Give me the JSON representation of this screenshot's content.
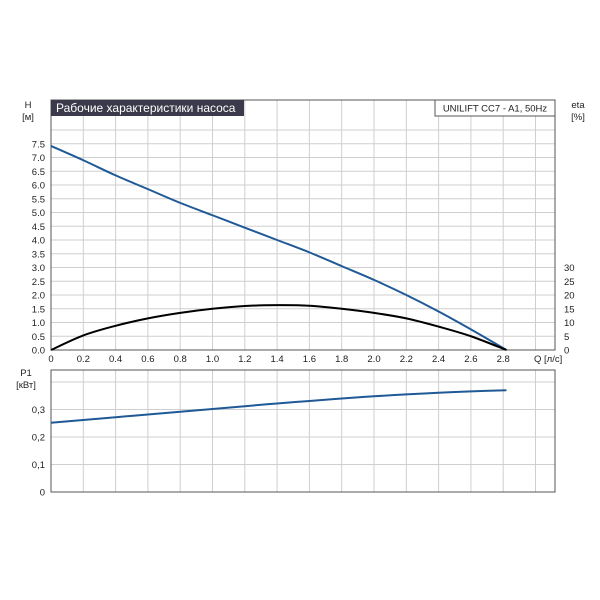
{
  "colors": {
    "head_curve": "#1f5a96",
    "eta_curve": "#000000",
    "power_curve": "#1f5a96",
    "grid": "#cfcfcf",
    "title_bg": "#3a3a4a"
  },
  "titles": {
    "chart_title": "Рабочие характеристики насоса",
    "model": "UNILIFT CC7 - A1, 50Hz"
  },
  "axes": {
    "h_label": "H",
    "h_unit": "[м]",
    "eta_label": "eta",
    "eta_unit": "[%]",
    "q_label": "Q [л/с]",
    "p1_label": "P1",
    "p1_unit": "[кВт]"
  },
  "chart_data": [
    {
      "type": "line",
      "title": "Рабочие характеристики насоса",
      "subtitle": "UNILIFT CC7 - A1, 50Hz",
      "xlabel": "Q [л/с]",
      "ylabel": "H [м]",
      "y2label": "eta [%]",
      "xlim": [
        0,
        3.0
      ],
      "ylim": [
        0,
        8.0
      ],
      "y2lim": [
        0,
        58
      ],
      "x_ticks": [
        "0",
        "0.2",
        "0.4",
        "0.6",
        "0.8",
        "1.0",
        "1.2",
        "1.4",
        "1.6",
        "1.8",
        "2.0",
        "2.2",
        "2.4",
        "2.6",
        "2.8"
      ],
      "y_ticks": [
        "0.0",
        "0.5",
        "1.0",
        "1.5",
        "2.0",
        "2.5",
        "3.0",
        "3.5",
        "4.0",
        "4.5",
        "5.0",
        "5.5",
        "6.0",
        "6.5",
        "7.0",
        "7.5"
      ],
      "y2_ticks": [
        "0",
        "5",
        "10",
        "15",
        "20",
        "25",
        "30"
      ],
      "grid": true,
      "series": [
        {
          "axis": "left",
          "x": [
            0,
            0.2,
            0.4,
            0.6,
            0.8,
            1.0,
            1.2,
            1.4,
            1.6,
            1.8,
            2.0,
            2.2,
            2.4,
            2.6,
            2.82
          ],
          "values": [
            7.42,
            6.9,
            6.35,
            5.85,
            5.35,
            4.9,
            4.45,
            4.0,
            3.55,
            3.05,
            2.55,
            2.0,
            1.4,
            0.75,
            0.0
          ]
        },
        {
          "axis": "right",
          "x": [
            0,
            0.2,
            0.4,
            0.6,
            0.8,
            1.0,
            1.2,
            1.4,
            1.6,
            1.8,
            2.0,
            2.2,
            2.4,
            2.6,
            2.82
          ],
          "values": [
            0,
            5.3,
            8.8,
            11.5,
            13.5,
            15.0,
            16.0,
            16.3,
            16.1,
            15.0,
            13.5,
            11.5,
            8.5,
            5.0,
            0.0
          ]
        }
      ]
    },
    {
      "type": "line",
      "ylabel": "P1 [кВт]",
      "xlim": [
        0,
        3.0
      ],
      "ylim": [
        0,
        0.4
      ],
      "y_ticks": [
        "0",
        "0,1",
        "0,2",
        "0,3"
      ],
      "grid": true,
      "series": [
        {
          "x": [
            0,
            0.2,
            0.4,
            0.6,
            0.8,
            1.0,
            1.2,
            1.4,
            1.6,
            1.8,
            2.0,
            2.2,
            2.4,
            2.6,
            2.82
          ],
          "values": [
            0.252,
            0.262,
            0.272,
            0.282,
            0.292,
            0.302,
            0.312,
            0.322,
            0.331,
            0.34,
            0.348,
            0.355,
            0.361,
            0.366,
            0.37
          ]
        }
      ]
    }
  ]
}
